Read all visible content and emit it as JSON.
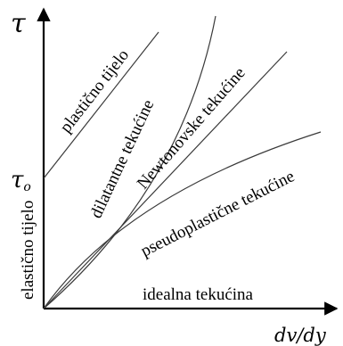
{
  "axes": {
    "y_symbol": "τ",
    "x_symbol": "dv/dy",
    "tau_zero_label": "τ",
    "tau_zero_subscript": "o"
  },
  "curves": {
    "plastic_body": "plastično tijelo",
    "dilatant": "dilatantne tekućine",
    "newtonian": "Newtonovske tekućine",
    "pseudoplastic": "pseudoplastične tekućine",
    "ideal": "idealna tekućina",
    "elastic_body": "elastično tijelo"
  },
  "colors": {
    "axis": "#000000",
    "curve": "#3a3a3a",
    "text": "#000000"
  }
}
